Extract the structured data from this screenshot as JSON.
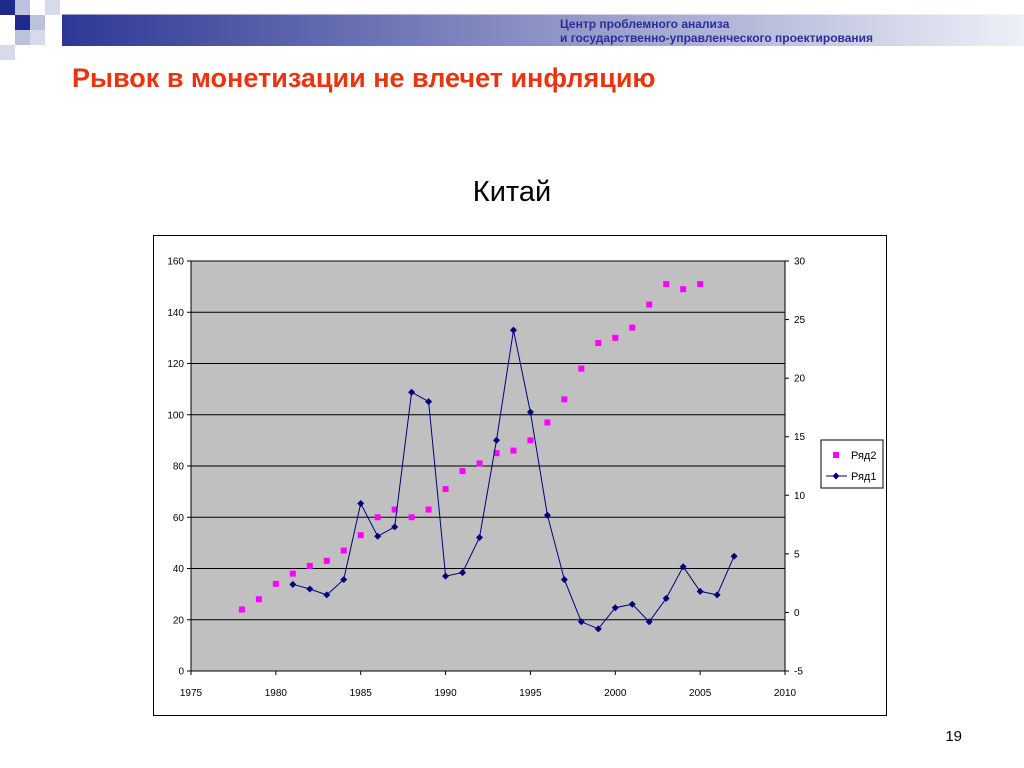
{
  "header": {
    "org_line1": "Центр проблемного анализа",
    "org_line2": "и государственно-управленческого проектирования",
    "slide_title": "Рывок в монетизации не влечет инфляцию"
  },
  "page_number": "19",
  "colors": {
    "title": "#e8350e",
    "org": "#2c2c9c",
    "series1": "#000080",
    "series2": "#ff00ff",
    "plot_bg": "#c0c0c0",
    "deco_dark": "#1e2a8c",
    "deco_light": "#bcc2dc"
  },
  "chart_data": {
    "type": "line",
    "title": "Китай",
    "x_range": [
      1975,
      2010
    ],
    "x_ticks": [
      "1975",
      "1980",
      "1985",
      "1990",
      "1995",
      "2000",
      "2005",
      "2010"
    ],
    "y_left_range": [
      0,
      160
    ],
    "y_left_ticks": [
      "0",
      "20",
      "40",
      "60",
      "80",
      "100",
      "120",
      "140",
      "160"
    ],
    "y_right_range": [
      -5,
      30
    ],
    "y_right_ticks": [
      "-5",
      "0",
      "5",
      "10",
      "15",
      "20",
      "25",
      "30"
    ],
    "grid": true,
    "legend_position": "right",
    "series": [
      {
        "name": "Ряд2",
        "axis": "left",
        "style": "markers",
        "x": [
          1978,
          1979,
          1980,
          1981,
          1982,
          1983,
          1984,
          1985,
          1986,
          1987,
          1988,
          1989,
          1990,
          1991,
          1992,
          1993,
          1994,
          1995,
          1996,
          1997,
          1998,
          1999,
          2000,
          2001,
          2002,
          2003,
          2004,
          2005
        ],
        "y": [
          24,
          28,
          34,
          38,
          41,
          43,
          47,
          53,
          60,
          63,
          60,
          63,
          71,
          78,
          81,
          85,
          86,
          90,
          97,
          106,
          118,
          128,
          130,
          134,
          143,
          151,
          149,
          151
        ]
      },
      {
        "name": "Ряд1",
        "axis": "right",
        "style": "line-diamond",
        "x": [
          1981,
          1982,
          1983,
          1984,
          1985,
          1986,
          1987,
          1988,
          1989,
          1990,
          1991,
          1992,
          1993,
          1994,
          1995,
          1996,
          1997,
          1998,
          1999,
          2000,
          2001,
          2002,
          2003,
          2004,
          2005,
          2006,
          2007
        ],
        "y": [
          2.4,
          2.0,
          1.5,
          2.8,
          9.3,
          6.5,
          7.3,
          18.8,
          18.0,
          3.1,
          3.4,
          6.4,
          14.7,
          24.1,
          17.1,
          8.3,
          2.8,
          -0.8,
          -1.4,
          0.4,
          0.7,
          -0.8,
          1.2,
          3.9,
          1.8,
          1.5,
          4.8
        ]
      }
    ]
  }
}
